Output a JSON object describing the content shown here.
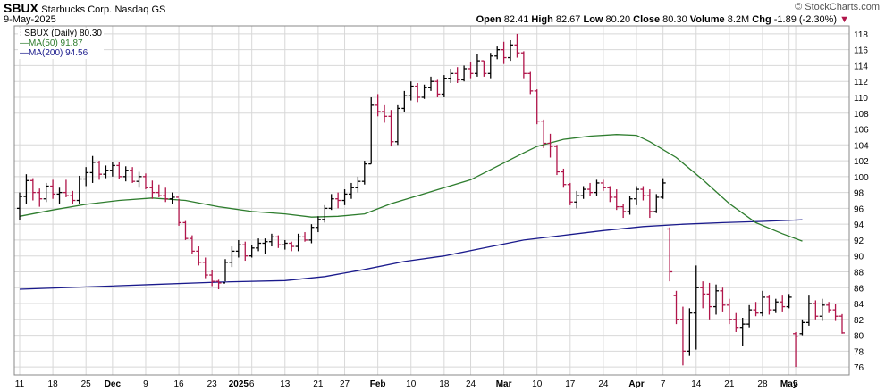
{
  "header": {
    "symbol": "SBUX",
    "company": "Starbucks Corp.",
    "exchange": "Nasdaq GS",
    "date": "9-May-2025",
    "brand": "© StockCharts.com",
    "open_label": "Open",
    "open": "82.41",
    "high_label": "High",
    "high": "82.67",
    "low_label": "Low",
    "low": "80.20",
    "close_label": "Close",
    "close": "80.30",
    "volume_label": "Volume",
    "volume": "8.2M",
    "chg_label": "Chg",
    "chg": "-1.89 (-2.30%)"
  },
  "legend": {
    "price": "SBUX (Daily) 80.30",
    "ma50": "MA(50) 91.87",
    "ma200": "MA(200) 94.56"
  },
  "colors": {
    "up": "#000000",
    "down": "#b0154a",
    "ma50": "#2e7d2e",
    "ma200": "#1a1a8c",
    "grid": "#d8d8d8"
  },
  "chart_data": {
    "type": "ohlc",
    "y_ticks": [
      76,
      78,
      80,
      82,
      84,
      86,
      88,
      90,
      92,
      94,
      96,
      98,
      100,
      102,
      104,
      106,
      108,
      110,
      112,
      114,
      116,
      118
    ],
    "ylim": [
      75,
      119
    ],
    "x_ticks": [
      {
        "label": "11",
        "i": 0
      },
      {
        "label": "18",
        "i": 5
      },
      {
        "label": "25",
        "i": 10
      },
      {
        "label": "Dec",
        "i": 14,
        "bold": true
      },
      {
        "label": "9",
        "i": 19
      },
      {
        "label": "16",
        "i": 24
      },
      {
        "label": "23",
        "i": 29
      },
      {
        "label": "2025",
        "i": 33,
        "bold": true
      },
      {
        "label": "6",
        "i": 35
      },
      {
        "label": "13",
        "i": 40
      },
      {
        "label": "21",
        "i": 45
      },
      {
        "label": "27",
        "i": 49
      },
      {
        "label": "Feb",
        "i": 54,
        "bold": true
      },
      {
        "label": "10",
        "i": 59
      },
      {
        "label": "18",
        "i": 64
      },
      {
        "label": "24",
        "i": 68
      },
      {
        "label": "Mar",
        "i": 73,
        "bold": true
      },
      {
        "label": "10",
        "i": 78
      },
      {
        "label": "17",
        "i": 83
      },
      {
        "label": "24",
        "i": 88
      },
      {
        "label": "Apr",
        "i": 93,
        "bold": true
      },
      {
        "label": "7",
        "i": 97
      },
      {
        "label": "14",
        "i": 102
      },
      {
        "label": "21",
        "i": 107
      },
      {
        "label": "28",
        "i": 112
      },
      {
        "label": "May",
        "i": 116,
        "bold": true
      },
      {
        "label": "5",
        "i": 117
      }
    ],
    "bars": [
      {
        "o": 96.0,
        "h": 98.0,
        "l": 94.5,
        "c": 97.5
      },
      {
        "o": 97.5,
        "h": 100.3,
        "l": 96.5,
        "c": 99.5
      },
      {
        "o": 99.5,
        "h": 99.8,
        "l": 97.0,
        "c": 98.0
      },
      {
        "o": 98.0,
        "h": 98.5,
        "l": 96.2,
        "c": 97.2
      },
      {
        "o": 97.2,
        "h": 99.2,
        "l": 96.8,
        "c": 98.8
      },
      {
        "o": 98.8,
        "h": 99.6,
        "l": 97.2,
        "c": 97.8
      },
      {
        "o": 97.8,
        "h": 98.6,
        "l": 96.6,
        "c": 98.0
      },
      {
        "o": 98.0,
        "h": 99.6,
        "l": 97.4,
        "c": 97.6
      },
      {
        "o": 97.6,
        "h": 98.2,
        "l": 96.5,
        "c": 97.0
      },
      {
        "o": 97.0,
        "h": 100.1,
        "l": 96.6,
        "c": 99.7
      },
      {
        "o": 99.7,
        "h": 101.2,
        "l": 98.8,
        "c": 100.5
      },
      {
        "o": 100.5,
        "h": 102.6,
        "l": 99.2,
        "c": 101.8
      },
      {
        "o": 101.8,
        "h": 102.0,
        "l": 99.6,
        "c": 100.3
      },
      {
        "o": 100.3,
        "h": 101.4,
        "l": 99.8,
        "c": 100.8
      },
      {
        "o": 100.8,
        "h": 101.8,
        "l": 100.0,
        "c": 101.4
      },
      {
        "o": 101.4,
        "h": 101.8,
        "l": 99.7,
        "c": 100.0
      },
      {
        "o": 100.0,
        "h": 101.3,
        "l": 99.4,
        "c": 100.8
      },
      {
        "o": 100.8,
        "h": 101.2,
        "l": 99.2,
        "c": 99.4
      },
      {
        "o": 99.4,
        "h": 100.6,
        "l": 98.6,
        "c": 100.0
      },
      {
        "o": 100.0,
        "h": 100.4,
        "l": 98.4,
        "c": 98.6
      },
      {
        "o": 98.6,
        "h": 99.5,
        "l": 97.2,
        "c": 98.0
      },
      {
        "o": 98.0,
        "h": 99.0,
        "l": 97.4,
        "c": 97.6
      },
      {
        "o": 97.6,
        "h": 98.6,
        "l": 96.8,
        "c": 97.2
      },
      {
        "o": 97.2,
        "h": 98.0,
        "l": 96.6,
        "c": 97.4
      },
      {
        "o": 97.4,
        "h": 97.2,
        "l": 93.8,
        "c": 94.2
      },
      {
        "o": 94.2,
        "h": 94.4,
        "l": 92.0,
        "c": 92.2
      },
      {
        "o": 92.2,
        "h": 92.6,
        "l": 90.2,
        "c": 90.6
      },
      {
        "o": 90.6,
        "h": 91.2,
        "l": 88.8,
        "c": 89.2
      },
      {
        "o": 89.2,
        "h": 89.8,
        "l": 87.2,
        "c": 87.6
      },
      {
        "o": 87.6,
        "h": 88.2,
        "l": 86.2,
        "c": 86.8
      },
      {
        "o": 86.8,
        "h": 87.0,
        "l": 85.8,
        "c": 86.6
      },
      {
        "o": 86.6,
        "h": 89.6,
        "l": 86.8,
        "c": 89.2
      },
      {
        "o": 89.2,
        "h": 91.2,
        "l": 88.6,
        "c": 90.6
      },
      {
        "o": 90.6,
        "h": 92.0,
        "l": 89.8,
        "c": 91.4
      },
      {
        "o": 91.4,
        "h": 91.8,
        "l": 89.4,
        "c": 90.0
      },
      {
        "o": 90.0,
        "h": 91.4,
        "l": 89.8,
        "c": 91.0
      },
      {
        "o": 91.0,
        "h": 92.2,
        "l": 90.6,
        "c": 91.6
      },
      {
        "o": 91.6,
        "h": 92.2,
        "l": 90.2,
        "c": 91.8
      },
      {
        "o": 91.8,
        "h": 92.8,
        "l": 91.2,
        "c": 92.4
      },
      {
        "o": 92.4,
        "h": 92.6,
        "l": 91.0,
        "c": 91.4
      },
      {
        "o": 91.4,
        "h": 92.0,
        "l": 90.8,
        "c": 91.6
      },
      {
        "o": 91.6,
        "h": 91.8,
        "l": 90.6,
        "c": 91.2
      },
      {
        "o": 91.2,
        "h": 92.8,
        "l": 90.6,
        "c": 92.4
      },
      {
        "o": 92.4,
        "h": 93.0,
        "l": 91.8,
        "c": 92.0
      },
      {
        "o": 92.0,
        "h": 94.0,
        "l": 91.6,
        "c": 93.6
      },
      {
        "o": 93.6,
        "h": 95.0,
        "l": 93.0,
        "c": 94.6
      },
      {
        "o": 94.6,
        "h": 96.4,
        "l": 94.2,
        "c": 96.0
      },
      {
        "o": 96.0,
        "h": 97.8,
        "l": 95.8,
        "c": 97.2
      },
      {
        "o": 97.2,
        "h": 98.0,
        "l": 96.0,
        "c": 97.0
      },
      {
        "o": 97.0,
        "h": 98.4,
        "l": 96.4,
        "c": 97.8
      },
      {
        "o": 97.8,
        "h": 99.2,
        "l": 97.2,
        "c": 98.6
      },
      {
        "o": 98.6,
        "h": 100.0,
        "l": 98.0,
        "c": 99.4
      },
      {
        "o": 99.4,
        "h": 102.0,
        "l": 99.0,
        "c": 101.6
      },
      {
        "o": 101.6,
        "h": 110.0,
        "l": 101.6,
        "c": 109.0
      },
      {
        "o": 109.0,
        "h": 110.4,
        "l": 107.6,
        "c": 108.2
      },
      {
        "o": 108.2,
        "h": 109.0,
        "l": 106.8,
        "c": 107.6
      },
      {
        "o": 107.6,
        "h": 108.4,
        "l": 103.8,
        "c": 104.4
      },
      {
        "o": 104.4,
        "h": 109.0,
        "l": 104.0,
        "c": 108.6
      },
      {
        "o": 108.6,
        "h": 110.8,
        "l": 108.2,
        "c": 110.2
      },
      {
        "o": 110.2,
        "h": 112.0,
        "l": 109.6,
        "c": 111.4
      },
      {
        "o": 111.4,
        "h": 111.8,
        "l": 109.4,
        "c": 110.0
      },
      {
        "o": 110.0,
        "h": 111.6,
        "l": 109.8,
        "c": 111.2
      },
      {
        "o": 111.2,
        "h": 112.6,
        "l": 110.8,
        "c": 112.0
      },
      {
        "o": 112.0,
        "h": 112.2,
        "l": 110.0,
        "c": 110.4
      },
      {
        "o": 110.4,
        "h": 112.8,
        "l": 110.0,
        "c": 112.4
      },
      {
        "o": 112.4,
        "h": 113.6,
        "l": 111.8,
        "c": 113.0
      },
      {
        "o": 113.0,
        "h": 113.8,
        "l": 111.8,
        "c": 112.2
      },
      {
        "o": 112.2,
        "h": 114.0,
        "l": 112.0,
        "c": 113.6
      },
      {
        "o": 113.6,
        "h": 114.4,
        "l": 112.4,
        "c": 113.0
      },
      {
        "o": 113.0,
        "h": 115.4,
        "l": 112.6,
        "c": 114.6
      },
      {
        "o": 114.6,
        "h": 114.6,
        "l": 112.6,
        "c": 113.0
      },
      {
        "o": 113.0,
        "h": 115.6,
        "l": 112.4,
        "c": 115.2
      },
      {
        "o": 115.2,
        "h": 116.4,
        "l": 114.8,
        "c": 116.0
      },
      {
        "o": 116.0,
        "h": 117.0,
        "l": 114.2,
        "c": 115.0
      },
      {
        "o": 115.0,
        "h": 117.2,
        "l": 114.6,
        "c": 116.6
      },
      {
        "o": 116.6,
        "h": 118.0,
        "l": 115.0,
        "c": 115.6
      },
      {
        "o": 115.6,
        "h": 115.8,
        "l": 112.4,
        "c": 113.0
      },
      {
        "o": 113.0,
        "h": 113.2,
        "l": 110.4,
        "c": 110.8
      },
      {
        "o": 110.8,
        "h": 111.0,
        "l": 106.6,
        "c": 107.0
      },
      {
        "o": 107.0,
        "h": 107.2,
        "l": 103.6,
        "c": 104.2
      },
      {
        "o": 104.2,
        "h": 105.4,
        "l": 102.4,
        "c": 103.8
      },
      {
        "o": 103.8,
        "h": 104.0,
        "l": 100.2,
        "c": 100.6
      },
      {
        "o": 100.6,
        "h": 101.0,
        "l": 98.6,
        "c": 99.0
      },
      {
        "o": 99.0,
        "h": 99.2,
        "l": 96.4,
        "c": 96.8
      },
      {
        "o": 96.8,
        "h": 98.2,
        "l": 96.0,
        "c": 97.6
      },
      {
        "o": 97.6,
        "h": 98.8,
        "l": 97.2,
        "c": 98.4
      },
      {
        "o": 98.4,
        "h": 99.2,
        "l": 97.6,
        "c": 98.0
      },
      {
        "o": 98.0,
        "h": 99.6,
        "l": 97.6,
        "c": 99.2
      },
      {
        "o": 99.2,
        "h": 99.6,
        "l": 98.2,
        "c": 98.6
      },
      {
        "o": 98.6,
        "h": 98.8,
        "l": 96.8,
        "c": 97.4
      },
      {
        "o": 97.4,
        "h": 98.4,
        "l": 95.8,
        "c": 96.2
      },
      {
        "o": 96.2,
        "h": 96.6,
        "l": 94.8,
        "c": 95.6
      },
      {
        "o": 95.6,
        "h": 97.6,
        "l": 95.2,
        "c": 97.2
      },
      {
        "o": 97.2,
        "h": 98.8,
        "l": 96.4,
        "c": 98.4
      },
      {
        "o": 98.4,
        "h": 98.8,
        "l": 97.0,
        "c": 97.6
      },
      {
        "o": 97.6,
        "h": 98.4,
        "l": 94.8,
        "c": 95.6
      },
      {
        "o": 95.6,
        "h": 97.8,
        "l": 95.4,
        "c": 97.4
      },
      {
        "o": 97.4,
        "h": 99.8,
        "l": 97.2,
        "c": 99.2
      }
    ],
    "bars_after_gap": [
      {
        "o": 93.4,
        "h": 93.6,
        "l": 86.8,
        "c": 88.0
      },
      {
        "o": 85.0,
        "h": 85.6,
        "l": 81.4,
        "c": 82.0
      },
      {
        "o": 82.0,
        "h": 83.6,
        "l": 76.2,
        "c": 78.0
      },
      {
        "o": 78.0,
        "h": 83.4,
        "l": 77.4,
        "c": 82.8
      },
      {
        "o": 82.8,
        "h": 88.8,
        "l": 78.2,
        "c": 86.0
      },
      {
        "o": 86.0,
        "h": 86.8,
        "l": 83.4,
        "c": 85.2
      },
      {
        "o": 85.2,
        "h": 86.6,
        "l": 82.0,
        "c": 83.6
      },
      {
        "o": 83.6,
        "h": 86.4,
        "l": 82.6,
        "c": 85.6
      },
      {
        "o": 85.6,
        "h": 86.0,
        "l": 83.0,
        "c": 83.8
      },
      {
        "o": 83.8,
        "h": 84.6,
        "l": 81.4,
        "c": 82.0
      },
      {
        "o": 82.0,
        "h": 82.8,
        "l": 80.4,
        "c": 81.0
      },
      {
        "o": 81.0,
        "h": 82.2,
        "l": 78.6,
        "c": 81.4
      },
      {
        "o": 81.4,
        "h": 83.8,
        "l": 81.0,
        "c": 83.2
      },
      {
        "o": 83.2,
        "h": 84.2,
        "l": 82.4,
        "c": 82.8
      },
      {
        "o": 82.8,
        "h": 85.6,
        "l": 82.4,
        "c": 84.8
      },
      {
        "o": 84.8,
        "h": 85.0,
        "l": 82.6,
        "c": 83.2
      },
      {
        "o": 83.2,
        "h": 84.6,
        "l": 82.8,
        "c": 84.2
      },
      {
        "o": 84.2,
        "h": 85.0,
        "l": 83.0,
        "c": 83.6
      },
      {
        "o": 83.6,
        "h": 85.2,
        "l": 83.4,
        "c": 84.8
      },
      {
        "o": 80.2,
        "h": 80.4,
        "l": 76.0,
        "c": 79.8
      },
      {
        "o": 80.2,
        "h": 82.0,
        "l": 80.0,
        "c": 81.6
      },
      {
        "o": 81.6,
        "h": 85.0,
        "l": 81.2,
        "c": 84.0
      },
      {
        "o": 84.0,
        "h": 84.4,
        "l": 82.0,
        "c": 82.4
      },
      {
        "o": 82.4,
        "h": 84.6,
        "l": 81.8,
        "c": 83.8
      },
      {
        "o": 83.8,
        "h": 84.2,
        "l": 82.8,
        "c": 83.2
      },
      {
        "o": 83.2,
        "h": 84.0,
        "l": 81.8,
        "c": 82.4
      },
      {
        "o": 82.41,
        "h": 82.67,
        "l": 80.2,
        "c": 80.3
      }
    ],
    "ma50": [
      [
        0,
        95.0
      ],
      [
        5,
        95.8
      ],
      [
        10,
        96.5
      ],
      [
        15,
        97.0
      ],
      [
        20,
        97.3
      ],
      [
        25,
        97.0
      ],
      [
        30,
        96.2
      ],
      [
        35,
        95.6
      ],
      [
        40,
        95.3
      ],
      [
        44,
        94.9
      ],
      [
        48,
        95.0
      ],
      [
        52,
        95.3
      ],
      [
        56,
        96.6
      ],
      [
        60,
        97.6
      ],
      [
        64,
        98.6
      ],
      [
        68,
        99.6
      ],
      [
        72,
        101.3
      ],
      [
        76,
        103.0
      ],
      [
        78,
        103.8
      ],
      [
        82,
        104.7
      ],
      [
        86,
        105.1
      ],
      [
        90,
        105.3
      ],
      [
        93,
        105.2
      ],
      [
        95,
        104.4
      ],
      [
        99,
        102.4
      ],
      [
        103,
        99.6
      ],
      [
        107,
        96.6
      ],
      [
        111,
        94.2
      ],
      [
        115,
        92.8
      ],
      [
        118,
        91.87
      ]
    ],
    "ma200": [
      [
        0,
        85.8
      ],
      [
        10,
        86.1
      ],
      [
        20,
        86.4
      ],
      [
        30,
        86.7
      ],
      [
        40,
        86.9
      ],
      [
        46,
        87.4
      ],
      [
        52,
        88.3
      ],
      [
        58,
        89.3
      ],
      [
        64,
        90.0
      ],
      [
        70,
        91.0
      ],
      [
        76,
        92.0
      ],
      [
        82,
        92.6
      ],
      [
        88,
        93.2
      ],
      [
        94,
        93.7
      ],
      [
        100,
        94.0
      ],
      [
        106,
        94.2
      ],
      [
        112,
        94.35
      ],
      [
        118,
        94.56
      ]
    ]
  }
}
